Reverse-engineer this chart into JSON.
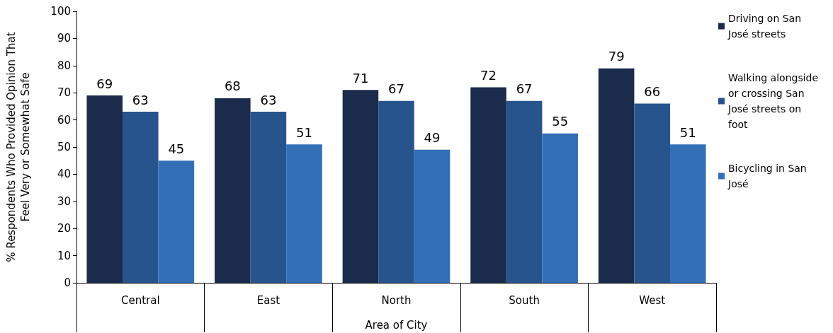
{
  "chart_data": {
    "type": "bar",
    "xlabel": "Area of City",
    "ylabel": "% Respondents Who Provided Opinion That Feel Very or Somewhat Safe",
    "categories": [
      "Central",
      "East",
      "North",
      "South",
      "West"
    ],
    "series": [
      {
        "name": "Driving on San José streets",
        "color": "#1a2b4c",
        "values": [
          69,
          68,
          71,
          72,
          79
        ]
      },
      {
        "name": "Walking alongside or crossing San José streets on foot",
        "color": "#28548e",
        "values": [
          63,
          63,
          67,
          67,
          66
        ]
      },
      {
        "name": "Bicycling in San José",
        "color": "#336fb7",
        "values": [
          45,
          51,
          49,
          55,
          51
        ]
      }
    ],
    "ylim": [
      0,
      100
    ],
    "yticks": [
      0,
      10,
      20,
      30,
      40,
      50,
      60,
      70,
      80,
      90,
      100
    ],
    "grid": false,
    "legend": "top right",
    "data_labels": true
  }
}
